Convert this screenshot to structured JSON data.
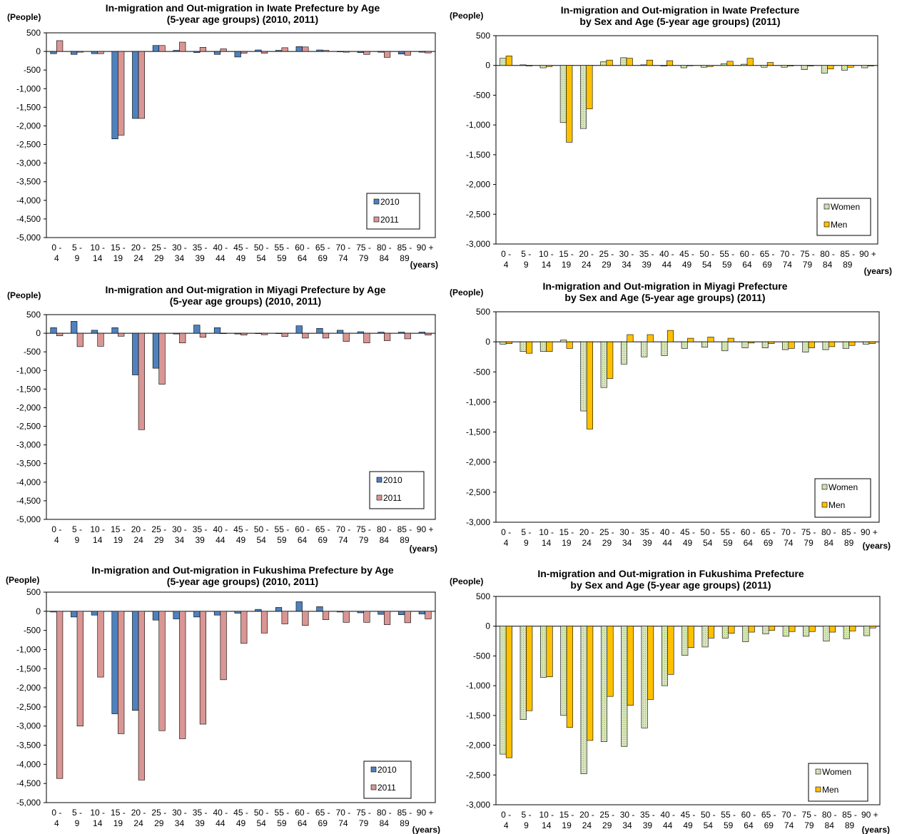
{
  "colors": {
    "s2010": "#4f81bd",
    "s2011": "#d99694",
    "women": "#d7e4bd",
    "women_dot": "#9bbb59",
    "men": "#ffc000",
    "bar_stroke": "#000000",
    "axis": "#000000",
    "frame": "#000000"
  },
  "chart_data": [
    {
      "type": "bar",
      "title": [
        "In-migration and Out-migration in Iwate Prefecture by Age",
        "(5-year age groups) (2010, 2011)"
      ],
      "ylabel": "(People)",
      "xlabel": "(years)",
      "ylim": [
        -5000,
        500
      ],
      "ytick_step": 500,
      "categories": [
        [
          "0 -",
          "4"
        ],
        [
          "5 -",
          "9"
        ],
        [
          "10 -",
          "14"
        ],
        [
          "15 -",
          "19"
        ],
        [
          "20 -",
          "24"
        ],
        [
          "25 -",
          "29"
        ],
        [
          "30 -",
          "34"
        ],
        [
          "35 -",
          "39"
        ],
        [
          "40 -",
          "44"
        ],
        [
          "45 -",
          "49"
        ],
        [
          "50 -",
          "54"
        ],
        [
          "55 -",
          "59"
        ],
        [
          "60 -",
          "64"
        ],
        [
          "65 -",
          "69"
        ],
        [
          "70 -",
          "74"
        ],
        [
          "75 -",
          "79"
        ],
        [
          "80 -",
          "84"
        ],
        [
          "85 -",
          "89"
        ],
        [
          "90 +",
          ""
        ]
      ],
      "legend_position": "bottom-right",
      "series": [
        {
          "name": "2010",
          "color_key": "s2010",
          "values": [
            -60,
            -80,
            -60,
            -2350,
            -1800,
            160,
            30,
            -30,
            -80,
            -150,
            40,
            30,
            130,
            40,
            -10,
            -30,
            -20,
            -70,
            -20
          ]
        },
        {
          "name": "2011",
          "color_key": "s2011",
          "values": [
            290,
            -20,
            -60,
            -2250,
            -1800,
            160,
            250,
            110,
            70,
            -50,
            -50,
            100,
            120,
            30,
            -20,
            -80,
            -160,
            -100,
            -40
          ]
        }
      ]
    },
    {
      "type": "bar",
      "title": [
        "In-migration and Out-migration in Iwate Prefecture",
        "by Sex and Age (5-year age groups) (2011)"
      ],
      "ylabel": "(People)",
      "xlabel": "(years)",
      "ylim": [
        -3000,
        500
      ],
      "ytick_step": 500,
      "categories": [
        [
          "0 -",
          "4"
        ],
        [
          "5 -",
          "9"
        ],
        [
          "10 -",
          "14"
        ],
        [
          "15 -",
          "19"
        ],
        [
          "20 -",
          "24"
        ],
        [
          "25 -",
          "29"
        ],
        [
          "30 -",
          "34"
        ],
        [
          "35 -",
          "39"
        ],
        [
          "40 -",
          "44"
        ],
        [
          "45 -",
          "49"
        ],
        [
          "50 -",
          "54"
        ],
        [
          "55 -",
          "59"
        ],
        [
          "60 -",
          "64"
        ],
        [
          "65 -",
          "69"
        ],
        [
          "70 -",
          "74"
        ],
        [
          "75 -",
          "79"
        ],
        [
          "80 -",
          "84"
        ],
        [
          "85 -",
          "89"
        ],
        [
          "90 +",
          ""
        ]
      ],
      "legend_position": "bottom-right",
      "series": [
        {
          "name": "Women",
          "color_key": "women",
          "pattern": "dots",
          "values": [
            120,
            10,
            -40,
            -960,
            -1060,
            60,
            130,
            10,
            -10,
            -40,
            -30,
            30,
            20,
            -30,
            -30,
            -70,
            -130,
            -80,
            -40
          ]
        },
        {
          "name": "Men",
          "color_key": "men",
          "values": [
            160,
            -10,
            -20,
            -1290,
            -730,
            90,
            120,
            90,
            80,
            0,
            -20,
            70,
            120,
            50,
            -10,
            -10,
            -60,
            -30,
            -10
          ]
        }
      ]
    },
    {
      "type": "bar",
      "title": [
        "In-migration and Out-migration in Miyagi Prefecture by Age",
        "(5-year age groups) (2010, 2011)"
      ],
      "ylabel": "(People)",
      "xlabel": "(years)",
      "ylim": [
        -5000,
        500
      ],
      "ytick_step": 500,
      "categories": [
        [
          "0 -",
          "4"
        ],
        [
          "5 -",
          "9"
        ],
        [
          "10 -",
          "14"
        ],
        [
          "15 -",
          "19"
        ],
        [
          "20 -",
          "24"
        ],
        [
          "25 -",
          "29"
        ],
        [
          "30 -",
          "34"
        ],
        [
          "35 -",
          "39"
        ],
        [
          "40 -",
          "44"
        ],
        [
          "45 -",
          "49"
        ],
        [
          "50 -",
          "54"
        ],
        [
          "55 -",
          "59"
        ],
        [
          "60 -",
          "64"
        ],
        [
          "65 -",
          "69"
        ],
        [
          "70 -",
          "74"
        ],
        [
          "75 -",
          "79"
        ],
        [
          "80 -",
          "84"
        ],
        [
          "85 -",
          "89"
        ],
        [
          "90 +",
          ""
        ]
      ],
      "legend_position": "bottom-right",
      "series": [
        {
          "name": "2010",
          "color_key": "s2010",
          "values": [
            150,
            320,
            80,
            150,
            -1120,
            -940,
            -20,
            220,
            150,
            -20,
            0,
            0,
            200,
            130,
            80,
            40,
            30,
            30,
            30
          ]
        },
        {
          "name": "2011",
          "color_key": "s2011",
          "values": [
            -70,
            -360,
            -350,
            -80,
            -2590,
            -1370,
            -260,
            -110,
            -10,
            -50,
            -40,
            -90,
            -130,
            -130,
            -220,
            -260,
            -200,
            -150,
            -50
          ]
        }
      ]
    },
    {
      "type": "bar",
      "title": [
        "In-migration and Out-migration in Miyagi Prefecture",
        "by Sex and Age (5-year age groups) (2011)"
      ],
      "ylabel": "(People)",
      "xlabel": "(years)",
      "ylim": [
        -3000,
        500
      ],
      "ytick_step": 500,
      "categories": [
        [
          "0 -",
          "4"
        ],
        [
          "5 -",
          "9"
        ],
        [
          "10 -",
          "14"
        ],
        [
          "15 -",
          "19"
        ],
        [
          "20 -",
          "24"
        ],
        [
          "25 -",
          "29"
        ],
        [
          "30 -",
          "34"
        ],
        [
          "35 -",
          "39"
        ],
        [
          "40 -",
          "44"
        ],
        [
          "45 -",
          "49"
        ],
        [
          "50 -",
          "54"
        ],
        [
          "55 -",
          "59"
        ],
        [
          "60 -",
          "64"
        ],
        [
          "65 -",
          "69"
        ],
        [
          "70 -",
          "74"
        ],
        [
          "75 -",
          "79"
        ],
        [
          "80 -",
          "84"
        ],
        [
          "85 -",
          "89"
        ],
        [
          "90 +",
          ""
        ]
      ],
      "legend_position": "bottom-right",
      "series": [
        {
          "name": "Women",
          "color_key": "women",
          "pattern": "dots",
          "values": [
            -40,
            -160,
            -160,
            30,
            -1150,
            -760,
            -370,
            -250,
            -230,
            -110,
            -90,
            -150,
            -100,
            -100,
            -130,
            -170,
            -130,
            -110,
            -40
          ]
        },
        {
          "name": "Men",
          "color_key": "men",
          "values": [
            -30,
            -190,
            -160,
            -110,
            -1450,
            -610,
            120,
            120,
            190,
            60,
            80,
            60,
            -20,
            -30,
            -110,
            -100,
            -80,
            -60,
            -30
          ]
        }
      ]
    },
    {
      "type": "bar",
      "title": [
        "In-migration and Out-migration in Fukushima Prefecture by Age",
        "(5-year age groups) (2010, 2011)"
      ],
      "ylabel": "(People)",
      "xlabel": "(years)",
      "ylim": [
        -5000,
        500
      ],
      "ytick_step": 500,
      "categories": [
        [
          "0 -",
          "4"
        ],
        [
          "5 -",
          "9"
        ],
        [
          "10 -",
          "14"
        ],
        [
          "15 -",
          "19"
        ],
        [
          "20 -",
          "24"
        ],
        [
          "25 -",
          "29"
        ],
        [
          "30 -",
          "34"
        ],
        [
          "35 -",
          "39"
        ],
        [
          "40 -",
          "44"
        ],
        [
          "45 -",
          "49"
        ],
        [
          "50 -",
          "54"
        ],
        [
          "55 -",
          "59"
        ],
        [
          "60 -",
          "64"
        ],
        [
          "65 -",
          "69"
        ],
        [
          "70 -",
          "74"
        ],
        [
          "75 -",
          "79"
        ],
        [
          "80 -",
          "84"
        ],
        [
          "85 -",
          "89"
        ],
        [
          "90 +",
          ""
        ]
      ],
      "legend_position": "bottom-right",
      "series": [
        {
          "name": "2010",
          "color_key": "s2010",
          "values": [
            -20,
            -150,
            -100,
            -2680,
            -2590,
            -230,
            -200,
            -150,
            -100,
            -50,
            50,
            100,
            250,
            120,
            -20,
            -40,
            -80,
            -90,
            -70
          ]
        },
        {
          "name": "2011",
          "color_key": "s2011",
          "values": [
            -4370,
            -3000,
            -1720,
            -3200,
            -4410,
            -3120,
            -3330,
            -2950,
            -1790,
            -840,
            -570,
            -330,
            -370,
            -220,
            -290,
            -290,
            -350,
            -300,
            -200
          ]
        }
      ]
    },
    {
      "type": "bar",
      "title": [
        "In-migration and Out-migration in Fukushima Prefecture",
        "by Sex and Age (5-year age groups) (2011)"
      ],
      "ylabel": "(People)",
      "xlabel": "(years)",
      "ylim": [
        -3000,
        500
      ],
      "ytick_step": 500,
      "categories": [
        [
          "0 -",
          "4"
        ],
        [
          "5 -",
          "9"
        ],
        [
          "10 -",
          "14"
        ],
        [
          "15 -",
          "19"
        ],
        [
          "20 -",
          "24"
        ],
        [
          "25 -",
          "29"
        ],
        [
          "30 -",
          "34"
        ],
        [
          "35 -",
          "39"
        ],
        [
          "40 -",
          "44"
        ],
        [
          "45 -",
          "49"
        ],
        [
          "50 -",
          "54"
        ],
        [
          "55 -",
          "59"
        ],
        [
          "60 -",
          "64"
        ],
        [
          "65 -",
          "69"
        ],
        [
          "70 -",
          "74"
        ],
        [
          "75 -",
          "79"
        ],
        [
          "80 -",
          "84"
        ],
        [
          "85 -",
          "89"
        ],
        [
          "90 +",
          ""
        ]
      ],
      "legend_position": "bottom-right",
      "series": [
        {
          "name": "Women",
          "color_key": "women",
          "pattern": "dots",
          "values": [
            -2150,
            -1570,
            -860,
            -1500,
            -2480,
            -1940,
            -2020,
            -1710,
            -1000,
            -490,
            -350,
            -200,
            -260,
            -130,
            -170,
            -170,
            -250,
            -210,
            -160
          ]
        },
        {
          "name": "Men",
          "color_key": "men",
          "values": [
            -2210,
            -1420,
            -850,
            -1700,
            -1920,
            -1180,
            -1330,
            -1230,
            -810,
            -360,
            -200,
            -120,
            -100,
            -70,
            -90,
            -90,
            -100,
            -80,
            -30
          ]
        }
      ]
    }
  ]
}
